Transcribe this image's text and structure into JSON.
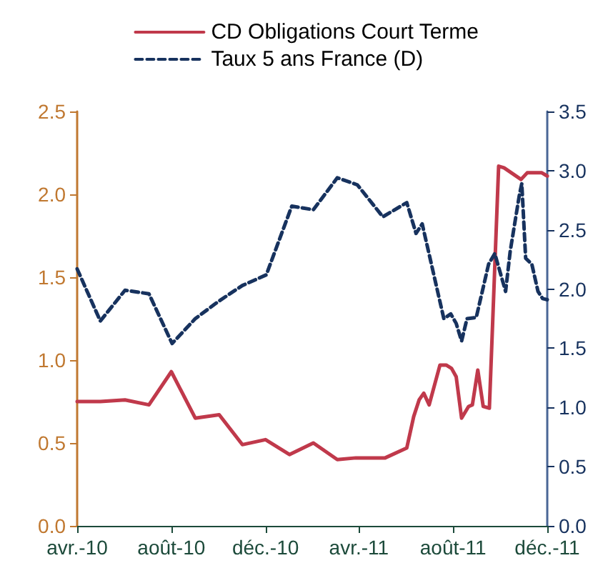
{
  "chart_data": {
    "type": "line",
    "xlim": [
      "2010-04-01",
      "2011-12-01"
    ],
    "xticks": [
      {
        "value": "2010-04-01",
        "label": "avr.-10"
      },
      {
        "value": "2010-08-01",
        "label": "août-10"
      },
      {
        "value": "2010-12-01",
        "label": "déc.-10"
      },
      {
        "value": "2011-04-01",
        "label": "avr.-11"
      },
      {
        "value": "2011-08-01",
        "label": "août-11"
      },
      {
        "value": "2011-12-01",
        "label": "déc.-11"
      }
    ],
    "ylim": [
      0,
      2.5
    ],
    "yticks": [
      {
        "value": 0,
        "label": "0.0"
      },
      {
        "value": 0.5,
        "label": "0.5"
      },
      {
        "value": 1,
        "label": "1.0"
      },
      {
        "value": 1.5,
        "label": "1.5"
      },
      {
        "value": 2,
        "label": "2.0"
      },
      {
        "value": 2.5,
        "label": "2.5"
      }
    ],
    "y2lim": [
      0,
      3.5
    ],
    "y2ticks": [
      {
        "value": 0,
        "label": "0.0"
      },
      {
        "value": 0.5,
        "label": "0.5"
      },
      {
        "value": 1,
        "label": "1.0"
      },
      {
        "value": 1.5,
        "label": "1.5"
      },
      {
        "value": 2,
        "label": "2.0"
      },
      {
        "value": 2.5,
        "label": "2.5"
      },
      {
        "value": 3,
        "label": "3.0"
      },
      {
        "value": 3.5,
        "label": "3.5"
      }
    ],
    "grid": false,
    "legend": "top",
    "marker": "none",
    "series": [
      {
        "name": "CD Obligations Court Terme",
        "color": "#c0394b",
        "line_style": "solid",
        "x": [
          "2010-04-01",
          "2010-05-01",
          "2010-06-02",
          "2010-07-03",
          "2010-08-01",
          "2010-09-01",
          "2010-10-02",
          "2010-11-01",
          "2010-12-01",
          "2011-01-01",
          "2011-02-01",
          "2011-03-04",
          "2011-03-28",
          "2011-05-05",
          "2011-06-02",
          "2011-06-11",
          "2011-06-18",
          "2011-06-24",
          "2011-07-01",
          "2011-07-15",
          "2011-07-23",
          "2011-07-30",
          "2011-08-05",
          "2011-08-12",
          "2011-08-21",
          "2011-08-26",
          "2011-09-02",
          "2011-09-09",
          "2011-09-17",
          "2011-09-29",
          "2011-10-06",
          "2011-10-28",
          "2011-11-05",
          "2011-11-14",
          "2011-11-24",
          "2011-12-01"
        ],
        "values": [
          0.75,
          0.75,
          0.76,
          0.73,
          0.93,
          0.65,
          0.67,
          0.49,
          0.52,
          0.43,
          0.5,
          0.4,
          0.41,
          0.41,
          0.47,
          0.66,
          0.76,
          0.8,
          0.73,
          0.97,
          0.97,
          0.95,
          0.9,
          0.65,
          0.72,
          0.73,
          0.94,
          0.72,
          0.71,
          2.17,
          2.16,
          2.09,
          2.13,
          2.13,
          2.13,
          2.11
        ]
      },
      {
        "name": "Taux 5 ans France (D)",
        "color": "#17325e",
        "line_style": "dashed",
        "axis": "y2",
        "x": [
          "2010-04-01",
          "2010-05-01",
          "2010-06-02",
          "2010-07-03",
          "2010-08-02",
          "2010-09-01",
          "2010-10-02",
          "2010-11-01",
          "2010-12-02",
          "2011-01-04",
          "2011-02-01",
          "2011-03-04",
          "2011-03-30",
          "2011-05-02",
          "2011-06-02",
          "2011-06-14",
          "2011-06-22",
          "2011-07-20",
          "2011-07-29",
          "2011-08-05",
          "2011-08-12",
          "2011-08-19",
          "2011-08-31",
          "2011-09-16",
          "2011-09-24",
          "2011-10-08",
          "2011-10-14",
          "2011-10-26",
          "2011-10-29",
          "2011-11-03",
          "2011-11-11",
          "2011-11-19",
          "2011-11-25",
          "2011-12-01"
        ],
        "values": [
          2.17,
          1.73,
          1.99,
          1.96,
          1.54,
          1.75,
          1.9,
          2.03,
          2.12,
          2.7,
          2.67,
          2.94,
          2.88,
          2.61,
          2.73,
          2.47,
          2.55,
          1.75,
          1.79,
          1.71,
          1.56,
          1.75,
          1.76,
          2.21,
          2.3,
          1.98,
          2.32,
          2.8,
          2.89,
          2.26,
          2.21,
          1.98,
          1.92,
          1.91
        ]
      }
    ]
  }
}
